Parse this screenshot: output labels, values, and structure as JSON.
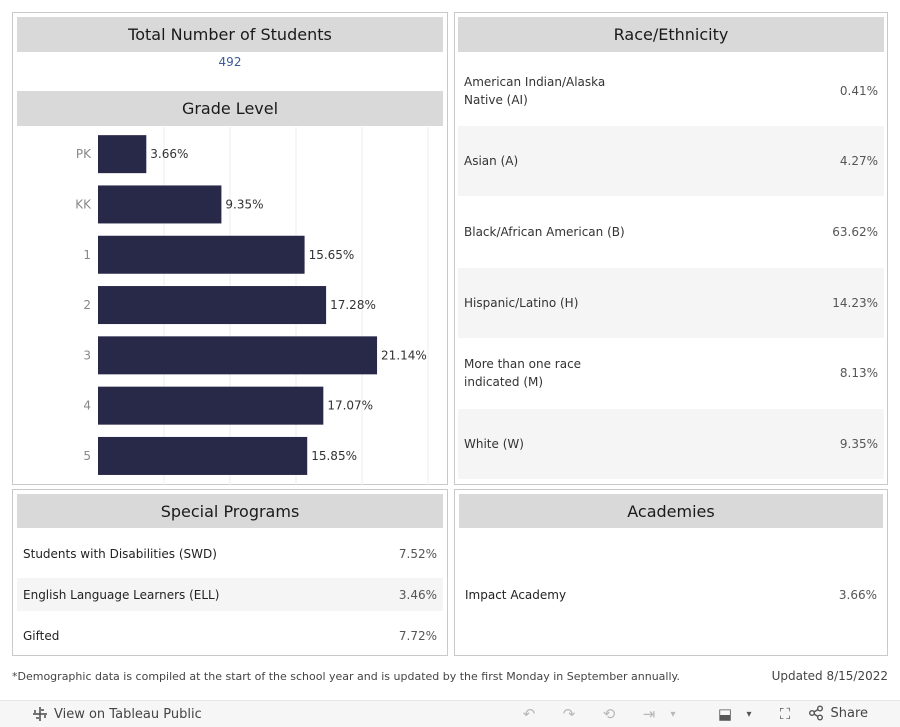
{
  "total": {
    "title": "Total Number of Students",
    "value": "492"
  },
  "grade": {
    "title": "Grade Level"
  },
  "chart_data": {
    "type": "bar",
    "orientation": "horizontal",
    "title": "Grade Level",
    "categories": [
      "PK",
      "KK",
      "1",
      "2",
      "3",
      "4",
      "5"
    ],
    "values": [
      3.66,
      9.35,
      15.65,
      17.28,
      21.14,
      17.07,
      15.85
    ],
    "value_labels": [
      "3.66%",
      "9.35%",
      "15.65%",
      "17.28%",
      "21.14%",
      "17.07%",
      "15.85%"
    ],
    "xlim": [
      0,
      25
    ],
    "grid": true,
    "bar_color": "#282848"
  },
  "race": {
    "title": "Race/Ethnicity",
    "rows": [
      {
        "name": "American Indian/Alaska Native (AI)",
        "value": "0.41%"
      },
      {
        "name": "Asian (A)",
        "value": "4.27%"
      },
      {
        "name": "Black/African American (B)",
        "value": "63.62%"
      },
      {
        "name": "Hispanic/Latino (H)",
        "value": "14.23%"
      },
      {
        "name": "More than one race indicated (M)",
        "value": "8.13%"
      },
      {
        "name": "White (W)",
        "value": "9.35%"
      }
    ]
  },
  "special": {
    "title": "Special Programs",
    "rows": [
      {
        "name": "Students with Disabilities (SWD)",
        "value": "7.52%"
      },
      {
        "name": "English Language Learners (ELL)",
        "value": "3.46%"
      },
      {
        "name": "Gifted",
        "value": "7.72%"
      }
    ]
  },
  "academies": {
    "title": "Academies",
    "rows": [
      {
        "name": "Impact Academy",
        "value": "3.66%"
      }
    ]
  },
  "footnote": "*Demographic data is compiled at the start of the school year and is updated by the first Monday in September annually.",
  "updated": "Updated 8/15/2022",
  "toolbar": {
    "view_label": "View on Tableau Public",
    "share_label": "Share"
  }
}
